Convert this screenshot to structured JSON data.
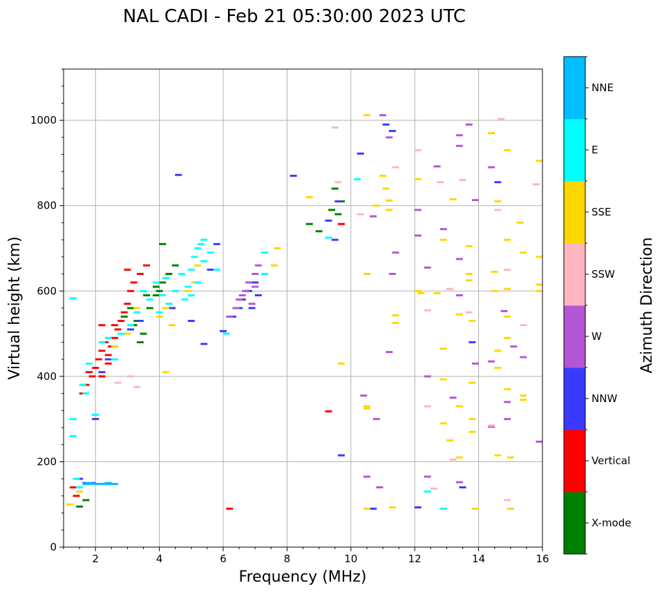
{
  "chart_data": {
    "type": "scatter",
    "title": "NAL CADI - Feb 21 05:30:00 2023 UTC",
    "xlabel": "Frequency (MHz)",
    "ylabel": "Virtual height (km)",
    "xlim": [
      1,
      16
    ],
    "ylim": [
      0,
      1120
    ],
    "x_ticks": [
      2,
      4,
      6,
      8,
      10,
      12,
      14,
      16
    ],
    "x_tick_labels": [
      "2",
      "4",
      "6",
      "8",
      "10",
      "12",
      "14",
      "16"
    ],
    "y_ticks": [
      0,
      200,
      400,
      600,
      800,
      1000
    ],
    "y_tick_labels": [
      "0",
      "200",
      "400",
      "600",
      "800",
      "1000"
    ],
    "grid": true,
    "colorbar": {
      "label": "Azimuth Direction",
      "categories": [
        {
          "name": "X-mode",
          "color": "#008000"
        },
        {
          "name": "Vertical",
          "color": "#ff0000"
        },
        {
          "name": "NNW",
          "color": "#3a3aff"
        },
        {
          "name": "W",
          "color": "#b455d6"
        },
        {
          "name": "SSW",
          "color": "#ffb6c1"
        },
        {
          "name": "SSE",
          "color": "#ffd700"
        },
        {
          "name": "E",
          "color": "#00ffff"
        },
        {
          "name": "NNE",
          "color": "#00bfff"
        }
      ]
    },
    "series": [
      {
        "name": "X-mode",
        "points": [
          [
            2.5,
            470
          ],
          [
            2.9,
            540
          ],
          [
            3.1,
            560
          ],
          [
            3.3,
            530
          ],
          [
            3.5,
            500
          ],
          [
            3.7,
            560
          ],
          [
            3.9,
            590
          ],
          [
            4.0,
            600
          ],
          [
            4.1,
            620
          ],
          [
            4.3,
            640
          ],
          [
            4.5,
            660
          ],
          [
            4.1,
            710
          ],
          [
            3.9,
            610
          ],
          [
            3.4,
            480
          ],
          [
            9.0,
            740
          ],
          [
            8.7,
            757
          ],
          [
            9.4,
            790
          ],
          [
            9.5,
            840
          ],
          [
            9.7,
            810
          ],
          [
            9.6,
            780
          ],
          [
            1.5,
            95
          ],
          [
            1.7,
            110
          ],
          [
            3.2,
            520
          ],
          [
            3.6,
            590
          ]
        ]
      },
      {
        "name": "Vertical",
        "points": [
          [
            1.3,
            140
          ],
          [
            1.4,
            120
          ],
          [
            1.6,
            360
          ],
          [
            1.7,
            380
          ],
          [
            1.9,
            400
          ],
          [
            2.0,
            420
          ],
          [
            2.1,
            440
          ],
          [
            2.2,
            460
          ],
          [
            2.3,
            480
          ],
          [
            2.4,
            450
          ],
          [
            2.5,
            470
          ],
          [
            2.6,
            490
          ],
          [
            2.7,
            510
          ],
          [
            2.8,
            530
          ],
          [
            2.9,
            550
          ],
          [
            3.0,
            570
          ],
          [
            3.1,
            600
          ],
          [
            3.2,
            620
          ],
          [
            3.4,
            640
          ],
          [
            3.6,
            660
          ],
          [
            2.0,
            310
          ],
          [
            2.2,
            400
          ],
          [
            2.4,
            430
          ],
          [
            1.8,
            410
          ],
          [
            6.2,
            90
          ],
          [
            9.3,
            318
          ],
          [
            9.7,
            757
          ],
          [
            3.0,
            650
          ],
          [
            2.6,
            520
          ],
          [
            2.2,
            520
          ]
        ]
      },
      {
        "name": "NNW",
        "points": [
          [
            1.5,
            160
          ],
          [
            1.7,
            150
          ],
          [
            2.2,
            410
          ],
          [
            2.4,
            440
          ],
          [
            2.6,
            470
          ],
          [
            3.1,
            510
          ],
          [
            3.4,
            530
          ],
          [
            4.4,
            560
          ],
          [
            4.6,
            872
          ],
          [
            5.0,
            530
          ],
          [
            5.4,
            476
          ],
          [
            5.6,
            650
          ],
          [
            5.8,
            710
          ],
          [
            6.0,
            506
          ],
          [
            6.5,
            560
          ],
          [
            6.6,
            580
          ],
          [
            6.8,
            600
          ],
          [
            7.0,
            620
          ],
          [
            7.1,
            590
          ],
          [
            6.3,
            540
          ],
          [
            6.9,
            560
          ],
          [
            8.2,
            870
          ],
          [
            9.3,
            765
          ],
          [
            9.5,
            720
          ],
          [
            9.6,
            810
          ],
          [
            9.7,
            215
          ],
          [
            10.3,
            922
          ],
          [
            10.7,
            90
          ],
          [
            11.1,
            990
          ],
          [
            11.3,
            975
          ],
          [
            12.1,
            93
          ],
          [
            13.5,
            140
          ],
          [
            13.8,
            480
          ],
          [
            14.6,
            855
          ],
          [
            1.9,
            150
          ],
          [
            2.0,
            300
          ]
        ]
      },
      {
        "name": "W",
        "points": [
          [
            6.2,
            540
          ],
          [
            6.4,
            560
          ],
          [
            6.5,
            580
          ],
          [
            6.7,
            600
          ],
          [
            6.8,
            620
          ],
          [
            7.0,
            640
          ],
          [
            7.1,
            660
          ],
          [
            6.6,
            590
          ],
          [
            7.0,
            610
          ],
          [
            6.9,
            570
          ],
          [
            10.4,
            355
          ],
          [
            10.5,
            165
          ],
          [
            10.7,
            775
          ],
          [
            10.8,
            300
          ],
          [
            10.9,
            140
          ],
          [
            11.0,
            1012
          ],
          [
            11.2,
            457
          ],
          [
            11.3,
            640
          ],
          [
            11.4,
            690
          ],
          [
            11.2,
            960
          ],
          [
            12.1,
            790
          ],
          [
            12.1,
            730
          ],
          [
            12.4,
            655
          ],
          [
            12.4,
            400
          ],
          [
            12.4,
            165
          ],
          [
            12.7,
            892
          ],
          [
            12.9,
            745
          ],
          [
            13.2,
            350
          ],
          [
            13.4,
            965
          ],
          [
            13.4,
            940
          ],
          [
            13.4,
            675
          ],
          [
            13.4,
            590
          ],
          [
            13.4,
            152
          ],
          [
            13.7,
            990
          ],
          [
            13.9,
            813
          ],
          [
            13.9,
            430
          ],
          [
            14.4,
            890
          ],
          [
            14.4,
            435
          ],
          [
            14.4,
            282
          ],
          [
            14.8,
            553
          ],
          [
            14.9,
            340
          ],
          [
            14.9,
            300
          ],
          [
            15.1,
            470
          ],
          [
            15.4,
            445
          ],
          [
            15.9,
            247
          ]
        ]
      },
      {
        "name": "SSW",
        "points": [
          [
            2.7,
            385
          ],
          [
            3.1,
            400
          ],
          [
            3.3,
            375
          ],
          [
            9.5,
            983
          ],
          [
            9.6,
            855
          ],
          [
            10.3,
            780
          ],
          [
            11.4,
            890
          ],
          [
            12.1,
            930
          ],
          [
            12.4,
            555
          ],
          [
            12.4,
            330
          ],
          [
            12.6,
            137
          ],
          [
            12.8,
            855
          ],
          [
            13.1,
            605
          ],
          [
            13.2,
            205
          ],
          [
            13.5,
            860
          ],
          [
            13.7,
            550
          ],
          [
            14.4,
            285
          ],
          [
            14.7,
            1003
          ],
          [
            14.9,
            650
          ],
          [
            14.9,
            110
          ],
          [
            15.4,
            520
          ],
          [
            15.8,
            850
          ],
          [
            14.6,
            790
          ]
        ]
      },
      {
        "name": "SSE",
        "points": [
          [
            1.2,
            100
          ],
          [
            1.5,
            130
          ],
          [
            2.6,
            470
          ],
          [
            3.0,
            500
          ],
          [
            3.3,
            560
          ],
          [
            4.0,
            540
          ],
          [
            4.2,
            560
          ],
          [
            4.2,
            410
          ],
          [
            4.4,
            520
          ],
          [
            4.9,
            600
          ],
          [
            5.1,
            620
          ],
          [
            5.2,
            660
          ],
          [
            7.6,
            660
          ],
          [
            7.7,
            700
          ],
          [
            8.7,
            820
          ],
          [
            9.7,
            430
          ],
          [
            10.5,
            1012
          ],
          [
            10.5,
            640
          ],
          [
            10.5,
            90
          ],
          [
            10.5,
            325
          ],
          [
            10.5,
            330
          ],
          [
            10.8,
            800
          ],
          [
            11.0,
            870
          ],
          [
            11.1,
            840
          ],
          [
            11.2,
            812
          ],
          [
            11.2,
            790
          ],
          [
            11.3,
            93
          ],
          [
            11.4,
            525
          ],
          [
            11.4,
            543
          ],
          [
            12.1,
            862
          ],
          [
            12.1,
            600
          ],
          [
            12.2,
            595
          ],
          [
            12.7,
            595
          ],
          [
            12.9,
            720
          ],
          [
            12.9,
            465
          ],
          [
            12.9,
            393
          ],
          [
            12.9,
            290
          ],
          [
            12.9,
            90
          ],
          [
            13.1,
            250
          ],
          [
            13.2,
            815
          ],
          [
            13.4,
            545
          ],
          [
            13.4,
            330
          ],
          [
            13.4,
            210
          ],
          [
            13.7,
            705
          ],
          [
            13.7,
            640
          ],
          [
            13.7,
            625
          ],
          [
            13.8,
            530
          ],
          [
            13.8,
            385
          ],
          [
            13.8,
            300
          ],
          [
            13.8,
            270
          ],
          [
            13.9,
            90
          ],
          [
            14.4,
            970
          ],
          [
            14.5,
            645
          ],
          [
            14.5,
            600
          ],
          [
            14.6,
            420
          ],
          [
            14.6,
            215
          ],
          [
            14.6,
            460
          ],
          [
            14.6,
            810
          ],
          [
            14.9,
            930
          ],
          [
            14.9,
            720
          ],
          [
            14.9,
            605
          ],
          [
            14.9,
            540
          ],
          [
            14.9,
            490
          ],
          [
            14.9,
            370
          ],
          [
            15.0,
            210
          ],
          [
            15.0,
            90
          ],
          [
            15.3,
            760
          ],
          [
            15.4,
            690
          ],
          [
            15.4,
            355
          ],
          [
            15.4,
            345
          ],
          [
            15.9,
            905
          ],
          [
            15.9,
            680
          ],
          [
            15.9,
            615
          ],
          [
            15.9,
            600
          ]
        ]
      },
      {
        "name": "E",
        "points": [
          [
            1.3,
            260
          ],
          [
            1.3,
            300
          ],
          [
            1.3,
            583
          ],
          [
            1.4,
            160
          ],
          [
            1.5,
            140
          ],
          [
            1.6,
            380
          ],
          [
            1.7,
            360
          ],
          [
            1.8,
            430
          ],
          [
            2.0,
            310
          ],
          [
            2.2,
            480
          ],
          [
            2.4,
            490
          ],
          [
            2.6,
            440
          ],
          [
            2.8,
            500
          ],
          [
            3.1,
            520
          ],
          [
            3.3,
            550
          ],
          [
            3.5,
            600
          ],
          [
            3.7,
            580
          ],
          [
            3.9,
            620
          ],
          [
            4.0,
            550
          ],
          [
            4.1,
            590
          ],
          [
            4.2,
            630
          ],
          [
            4.3,
            570
          ],
          [
            4.5,
            600
          ],
          [
            4.7,
            640
          ],
          [
            4.8,
            580
          ],
          [
            4.9,
            610
          ],
          [
            5.0,
            650
          ],
          [
            5.1,
            680
          ],
          [
            5.2,
            700
          ],
          [
            5.3,
            710
          ],
          [
            5.4,
            720
          ],
          [
            5.0,
            590
          ],
          [
            5.2,
            620
          ],
          [
            5.4,
            670
          ],
          [
            5.6,
            690
          ],
          [
            5.8,
            650
          ],
          [
            6.1,
            500
          ],
          [
            7.3,
            690
          ],
          [
            7.3,
            640
          ],
          [
            9.3,
            725
          ],
          [
            10.2,
            862
          ],
          [
            12.4,
            130
          ],
          [
            12.9,
            90
          ]
        ]
      },
      {
        "name": "NNE",
        "points": [
          [
            1.7,
            148
          ],
          [
            1.9,
            148
          ],
          [
            2.1,
            148
          ],
          [
            2.3,
            148
          ],
          [
            2.5,
            148
          ],
          [
            2.6,
            148
          ],
          [
            1.8,
            150
          ],
          [
            2.4,
            150
          ]
        ]
      }
    ]
  }
}
